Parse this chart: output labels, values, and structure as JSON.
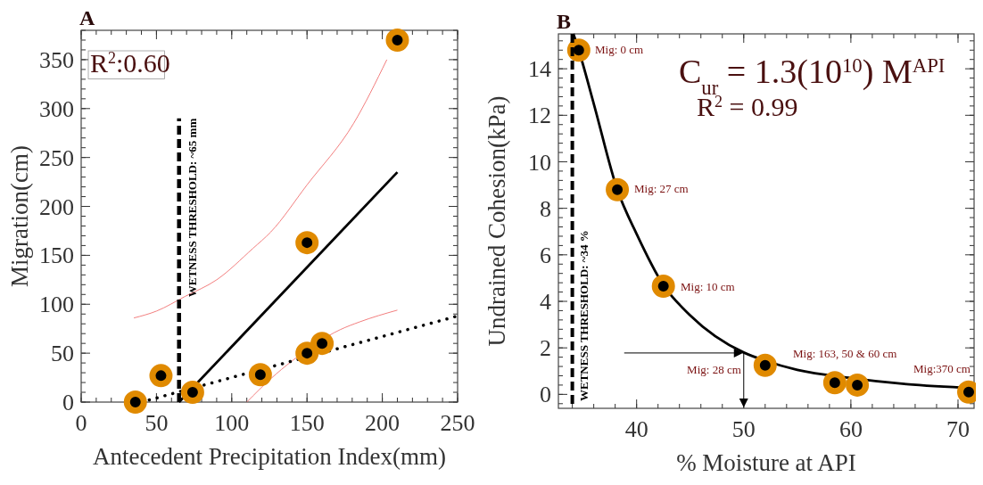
{
  "chart_data": [
    {
      "type": "scatter",
      "title": "A",
      "xlabel": "Antecedent Precipitation Index(mm)",
      "ylabel": "Migration(cm)",
      "xlim": [
        0,
        250
      ],
      "ylim": [
        0,
        380
      ],
      "xticks": [
        0,
        50,
        100,
        150,
        200,
        250
      ],
      "yticks": [
        0,
        50,
        100,
        150,
        200,
        250,
        300,
        350
      ],
      "grid": false,
      "annotations": [
        "R$^{2}$:0.60",
        {
          "text": "WETNESS THRESHOLD: ~65 mm",
          "x": 65,
          "y": 290
        }
      ],
      "series": [
        {
          "type": "line",
          "color": "#f07070",
          "x": [
            35,
            50,
            69,
            90,
            114,
            126,
            150,
            181,
            203
          ],
          "values": [
            86,
            93,
            108,
            125,
            157,
            174,
            222,
            285,
            350
          ]
        },
        {
          "type": "line",
          "color": "#f07070",
          "x": [
            110,
            126,
            140,
            172,
            185,
            210
          ],
          "values": [
            0,
            24,
            42,
            74,
            82,
            94
          ]
        },
        {
          "type": "line",
          "color": "#000000",
          "line_style": "dotted",
          "x": [
            40,
            250
          ],
          "values": [
            0,
            88
          ]
        },
        {
          "type": "line",
          "color": "#000000",
          "x": [
            65,
            210
          ],
          "values": [
            0,
            235
          ]
        },
        {
          "type": "line",
          "color": "#000000",
          "line_style": "dashed",
          "x": [
            65,
            65
          ],
          "values": [
            0,
            290
          ]
        },
        {
          "color": "#e08a00",
          "marker": "circle",
          "x": [
            36,
            53,
            74,
            119,
            150,
            150,
            160,
            210
          ],
          "values": [
            0,
            27,
            10,
            28,
            163,
            50,
            60,
            370
          ]
        }
      ]
    },
    {
      "type": "scatter",
      "title": "B",
      "xlabel": "% Moisture at API",
      "ylabel": "Undrained Cohesion(kPa)",
      "xlim": [
        32.7,
        71.5
      ],
      "ylim": [
        -0.6,
        15.5
      ],
      "xticks": [
        40,
        50,
        60,
        70
      ],
      "yticks": [
        0,
        2,
        4,
        6,
        8,
        10,
        12,
        14
      ],
      "grid": false,
      "ref_lines": [
        {
          "axis": "x",
          "value": 34,
          "label": "WETNESS THRESHOLD: ~34 %",
          "line_style": "dashed",
          "color": "#000000"
        }
      ],
      "annotations": [
        "C$_{ur}$ = 1.3(10$^{10}$) M$^{API}$",
        "R$^{2}$ = 0.99",
        "Mig: 0 cm",
        "Mig: 27 cm",
        "Mig: 10 cm",
        "Mig: 163, 50 & 60 cm",
        "Mig:370 cm",
        {
          "text": "Mig: 28 cm",
          "x": 50,
          "y": 1.78
        }
      ],
      "series": [
        {
          "type": "line",
          "color": "#000000",
          "x": [
            34.1,
            34.6,
            36,
            38.2,
            40,
            42.5,
            45,
            50,
            52,
            55,
            60,
            65,
            71.5
          ],
          "values": [
            15.5,
            14.8,
            12.5,
            8.8,
            6.9,
            4.7,
            3.4,
            1.8,
            1.45,
            1.05,
            0.7,
            0.45,
            0.27
          ]
        },
        {
          "color": "#e08a00",
          "marker": "circle",
          "x": [
            34.6,
            38.2,
            42.5,
            52,
            58.5,
            60.6,
            71
          ],
          "values": [
            14.8,
            8.8,
            4.65,
            1.25,
            0.5,
            0.4,
            0.1
          ]
        }
      ]
    }
  ]
}
